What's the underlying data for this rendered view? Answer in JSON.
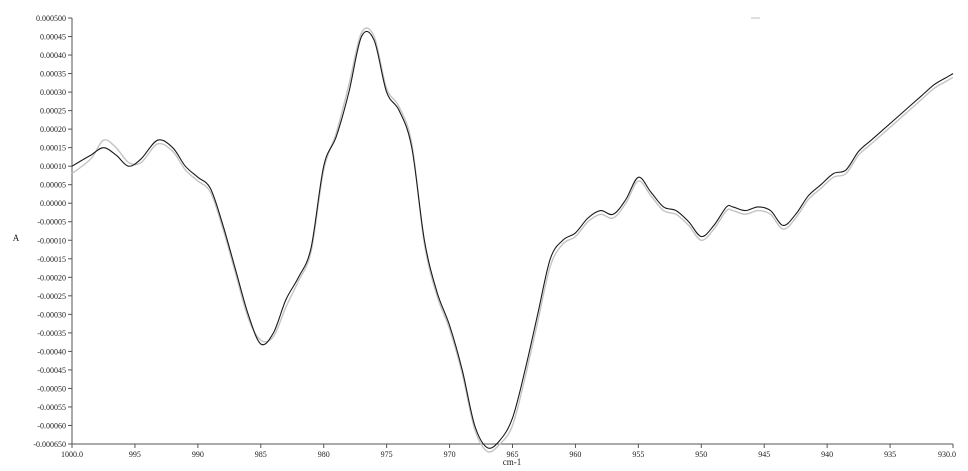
{
  "chart_data": {
    "type": "line",
    "title": "",
    "xlabel": "cm-1",
    "ylabel": "A",
    "xlim": [
      1000.0,
      930.0
    ],
    "ylim": [
      -0.00065,
      0.0005
    ],
    "x_tick_labels": [
      "1000.0",
      "995",
      "990",
      "985",
      "980",
      "975",
      "970",
      "965",
      "960",
      "955",
      "950",
      "945",
      "940",
      "935",
      "930.0"
    ],
    "x_tick_values": [
      1000,
      995,
      990,
      985,
      980,
      975,
      970,
      965,
      960,
      955,
      950,
      945,
      940,
      935,
      930
    ],
    "y_tick_labels": [
      "0.000500",
      "0.00045",
      "0.00040",
      "0.00035",
      "0.00030",
      "0.00025",
      "0.00020",
      "0.00015",
      "0.00010",
      "0.00005",
      "0.00000",
      "-0.00005",
      "-0.00010",
      "-0.00015",
      "-0.00020",
      "-0.00025",
      "-0.00030",
      "-0.00035",
      "-0.00040",
      "-0.00045",
      "-0.00050",
      "-0.00055",
      "-0.00060",
      "-0.000650"
    ],
    "y_tick_values": [
      0.0005,
      0.00045,
      0.0004,
      0.00035,
      0.0003,
      0.00025,
      0.0002,
      0.00015,
      0.0001,
      5e-05,
      0,
      -5e-05,
      -0.0001,
      -0.00015,
      -0.0002,
      -0.00025,
      -0.0003,
      -0.00035,
      -0.0004,
      -0.00045,
      -0.0005,
      -0.00055,
      -0.0006,
      -0.00065
    ],
    "grid": false,
    "legend": "none",
    "series": [
      {
        "color": "#1a1a1a",
        "x": [
          1000,
          998.5,
          997.5,
          996.5,
          995.5,
          994.5,
          993.2,
          992,
          991,
          990,
          989,
          988,
          987,
          986,
          985,
          984,
          983,
          982,
          981,
          980,
          979,
          978,
          977,
          976,
          975,
          974,
          973,
          972,
          971,
          970,
          969,
          968,
          967,
          966,
          965,
          964,
          963,
          962,
          961,
          960,
          959,
          958,
          957,
          956,
          955,
          954,
          953,
          952,
          951,
          950,
          949,
          948,
          947.5,
          946.5,
          945.5,
          944.5,
          943.5,
          942.5,
          941.5,
          940.5,
          939.5,
          938.5,
          937.5,
          936.5,
          935.5,
          934.5,
          933.5,
          932.5,
          931.5,
          930.5,
          930
        ],
        "y": [
          0.0001,
          0.00013,
          0.00015,
          0.00013,
          0.0001,
          0.00012,
          0.00017,
          0.00015,
          0.0001,
          7e-05,
          4e-05,
          -6e-05,
          -0.00018,
          -0.0003,
          -0.00038,
          -0.00035,
          -0.00026,
          -0.0002,
          -0.00012,
          0.0001,
          0.00018,
          0.0003,
          0.00045,
          0.00044,
          0.0003,
          0.00025,
          0.00015,
          -0.0001,
          -0.00024,
          -0.00033,
          -0.00045,
          -0.0006,
          -0.00066,
          -0.00064,
          -0.00058,
          -0.00045,
          -0.0003,
          -0.00015,
          -0.0001,
          -8e-05,
          -4e-05,
          -2e-05,
          -3e-05,
          1e-05,
          7e-05,
          3e-05,
          -1e-05,
          -2e-05,
          -5e-05,
          -9e-05,
          -6e-05,
          -1e-05,
          -1e-05,
          -2e-05,
          -1e-05,
          -2e-05,
          -6e-05,
          -3e-05,
          2e-05,
          5e-05,
          8e-05,
          9e-05,
          0.00014,
          0.00017,
          0.0002,
          0.00023,
          0.00026,
          0.00029,
          0.00032,
          0.00034,
          0.00035
        ]
      },
      {
        "color": "#c4c4c4",
        "x": [
          1000,
          998.5,
          997.5,
          996.5,
          995.5,
          994.5,
          993.2,
          992,
          991,
          990,
          989,
          988,
          987,
          986,
          985,
          984,
          983,
          982,
          981,
          980,
          979,
          978,
          977,
          976,
          975,
          974,
          973,
          972,
          971,
          970,
          969,
          968,
          967,
          966,
          965,
          964,
          963,
          962,
          961,
          960,
          959,
          958,
          957,
          956,
          955,
          954,
          953,
          952,
          951,
          950,
          949,
          948,
          947.5,
          946.5,
          945.5,
          944.5,
          943.5,
          942.5,
          941.5,
          940.5,
          939.5,
          938.5,
          937.5,
          936.5,
          935.5,
          934.5,
          933.5,
          932.5,
          931.5,
          930.5,
          930
        ],
        "y": [
          8e-05,
          0.00012,
          0.00017,
          0.00015,
          0.00011,
          0.00011,
          0.00016,
          0.00014,
          9e-05,
          6e-05,
          3e-05,
          -7e-05,
          -0.00019,
          -0.00031,
          -0.00037,
          -0.00036,
          -0.00028,
          -0.00021,
          -0.00013,
          9e-05,
          0.00019,
          0.00032,
          0.00046,
          0.00045,
          0.00031,
          0.00026,
          0.00016,
          -0.00011,
          -0.00025,
          -0.00034,
          -0.00046,
          -0.00061,
          -0.00067,
          -0.00065,
          -0.0006,
          -0.00047,
          -0.00032,
          -0.00017,
          -0.00011,
          -9e-05,
          -5e-05,
          -3e-05,
          -4e-05,
          0,
          6e-05,
          2e-05,
          -2e-05,
          -3e-05,
          -6e-05,
          -0.0001,
          -7e-05,
          -2e-05,
          -2e-05,
          -3e-05,
          -2e-05,
          -3e-05,
          -7e-05,
          -4e-05,
          1e-05,
          4e-05,
          7e-05,
          8e-05,
          0.00013,
          0.00016,
          0.00019,
          0.00022,
          0.00025,
          0.00028,
          0.00031,
          0.00033,
          0.00034
        ]
      }
    ]
  }
}
